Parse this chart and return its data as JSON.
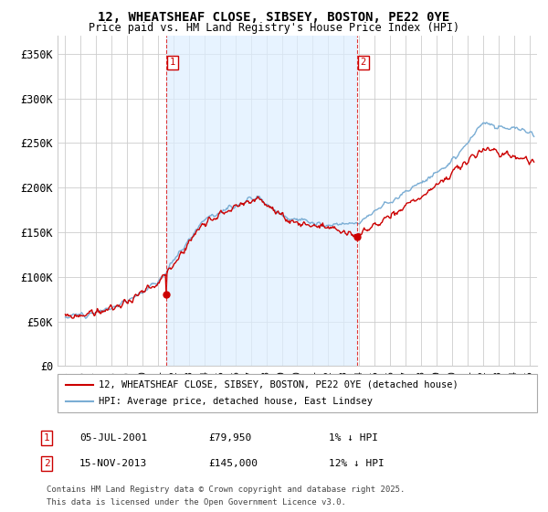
{
  "title_line1": "12, WHEATSHEAF CLOSE, SIBSEY, BOSTON, PE22 0YE",
  "title_line2": "Price paid vs. HM Land Registry's House Price Index (HPI)",
  "background_color": "#ffffff",
  "plot_bg_color": "#ffffff",
  "grid_color": "#cccccc",
  "red_line_color": "#cc0000",
  "blue_line_color": "#7aadd4",
  "shade_color": "#ddeeff",
  "sale1_x": 2001.54,
  "sale2_x": 2013.88,
  "sale1_price": 79950,
  "sale2_price": 145000,
  "legend_house": "12, WHEATSHEAF CLOSE, SIBSEY, BOSTON, PE22 0YE (detached house)",
  "legend_hpi": "HPI: Average price, detached house, East Lindsey",
  "row1_num": "1",
  "row1_date": "05-JUL-2001",
  "row1_price": "£79,950",
  "row1_pct": "1% ↓ HPI",
  "row2_num": "2",
  "row2_date": "15-NOV-2013",
  "row2_price": "£145,000",
  "row2_pct": "12% ↓ HPI",
  "footer_line1": "Contains HM Land Registry data © Crown copyright and database right 2025.",
  "footer_line2": "This data is licensed under the Open Government Licence v3.0.",
  "ylim": [
    0,
    370000
  ],
  "xlim": [
    1994.5,
    2025.5
  ],
  "yticks": [
    0,
    50000,
    100000,
    150000,
    200000,
    250000,
    300000,
    350000
  ],
  "ytick_labels": [
    "£0",
    "£50K",
    "£100K",
    "£150K",
    "£200K",
    "£250K",
    "£300K",
    "£350K"
  ]
}
